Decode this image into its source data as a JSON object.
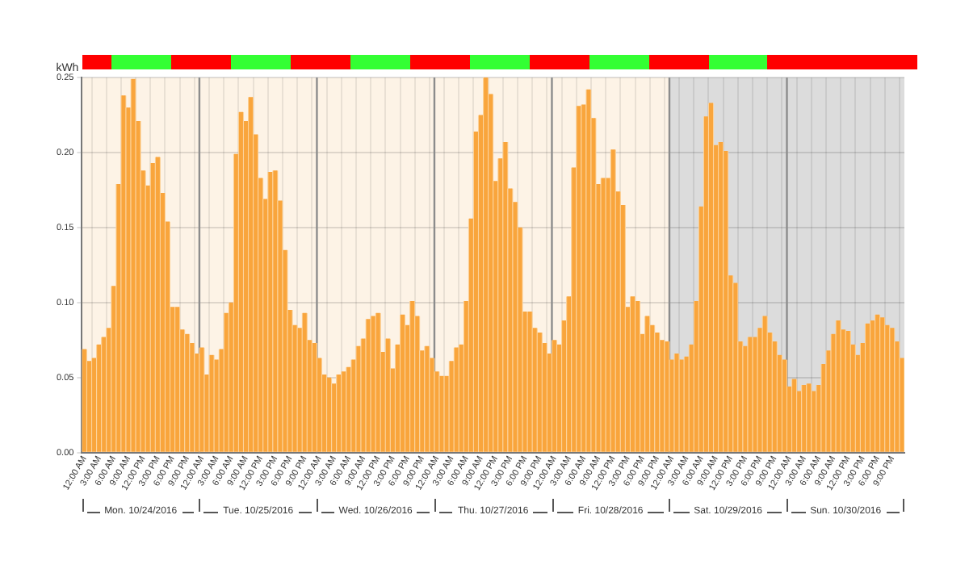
{
  "chart_data": {
    "type": "bar",
    "ylabel": "kWh",
    "x": [
      "2016-10-24T00:00",
      "2016-10-24T01:00",
      "2016-10-24T02:00",
      "2016-10-24T03:00",
      "2016-10-24T04:00",
      "2016-10-24T05:00",
      "2016-10-24T06:00",
      "2016-10-24T07:00",
      "2016-10-24T08:00",
      "2016-10-24T09:00",
      "2016-10-24T10:00",
      "2016-10-24T11:00",
      "2016-10-24T12:00",
      "2016-10-24T13:00",
      "2016-10-24T14:00",
      "2016-10-24T15:00",
      "2016-10-24T16:00",
      "2016-10-24T17:00",
      "2016-10-24T18:00",
      "2016-10-24T19:00",
      "2016-10-24T20:00",
      "2016-10-24T21:00",
      "2016-10-24T22:00",
      "2016-10-24T23:00",
      "2016-10-25T00:00",
      "2016-10-25T01:00",
      "2016-10-25T02:00",
      "2016-10-25T03:00",
      "2016-10-25T04:00",
      "2016-10-25T05:00",
      "2016-10-25T06:00",
      "2016-10-25T07:00",
      "2016-10-25T08:00",
      "2016-10-25T09:00",
      "2016-10-25T10:00",
      "2016-10-25T11:00",
      "2016-10-25T12:00",
      "2016-10-25T13:00",
      "2016-10-25T14:00",
      "2016-10-25T15:00",
      "2016-10-25T16:00",
      "2016-10-25T17:00",
      "2016-10-25T18:00",
      "2016-10-25T19:00",
      "2016-10-25T20:00",
      "2016-10-25T21:00",
      "2016-10-25T22:00",
      "2016-10-25T23:00",
      "2016-10-26T00:00",
      "2016-10-26T01:00",
      "2016-10-26T02:00",
      "2016-10-26T03:00",
      "2016-10-26T04:00",
      "2016-10-26T05:00",
      "2016-10-26T06:00",
      "2016-10-26T07:00",
      "2016-10-26T08:00",
      "2016-10-26T09:00",
      "2016-10-26T10:00",
      "2016-10-26T11:00",
      "2016-10-26T12:00",
      "2016-10-26T13:00",
      "2016-10-26T14:00",
      "2016-10-26T15:00",
      "2016-10-26T16:00",
      "2016-10-26T17:00",
      "2016-10-26T18:00",
      "2016-10-26T19:00",
      "2016-10-26T20:00",
      "2016-10-26T21:00",
      "2016-10-26T22:00",
      "2016-10-26T23:00",
      "2016-10-27T00:00",
      "2016-10-27T01:00",
      "2016-10-27T02:00",
      "2016-10-27T03:00",
      "2016-10-27T04:00",
      "2016-10-27T05:00",
      "2016-10-27T06:00",
      "2016-10-27T07:00",
      "2016-10-27T08:00",
      "2016-10-27T09:00",
      "2016-10-27T10:00",
      "2016-10-27T11:00",
      "2016-10-27T12:00",
      "2016-10-27T13:00",
      "2016-10-27T14:00",
      "2016-10-27T15:00",
      "2016-10-27T16:00",
      "2016-10-27T17:00",
      "2016-10-27T18:00",
      "2016-10-27T19:00",
      "2016-10-27T20:00",
      "2016-10-27T21:00",
      "2016-10-27T22:00",
      "2016-10-27T23:00",
      "2016-10-28T00:00",
      "2016-10-28T01:00",
      "2016-10-28T02:00",
      "2016-10-28T03:00",
      "2016-10-28T04:00",
      "2016-10-28T05:00",
      "2016-10-28T06:00",
      "2016-10-28T07:00",
      "2016-10-28T08:00",
      "2016-10-28T09:00",
      "2016-10-28T10:00",
      "2016-10-28T11:00",
      "2016-10-28T12:00",
      "2016-10-28T13:00",
      "2016-10-28T14:00",
      "2016-10-28T15:00",
      "2016-10-28T16:00",
      "2016-10-28T17:00",
      "2016-10-28T18:00",
      "2016-10-28T19:00",
      "2016-10-28T20:00",
      "2016-10-28T21:00",
      "2016-10-28T22:00",
      "2016-10-28T23:00",
      "2016-10-29T00:00",
      "2016-10-29T01:00",
      "2016-10-29T02:00",
      "2016-10-29T03:00",
      "2016-10-29T04:00",
      "2016-10-29T05:00",
      "2016-10-29T06:00",
      "2016-10-29T07:00",
      "2016-10-29T08:00",
      "2016-10-29T09:00",
      "2016-10-29T10:00",
      "2016-10-29T11:00",
      "2016-10-29T12:00",
      "2016-10-29T13:00",
      "2016-10-29T14:00",
      "2016-10-29T15:00",
      "2016-10-29T16:00",
      "2016-10-29T17:00",
      "2016-10-29T18:00",
      "2016-10-29T19:00",
      "2016-10-29T20:00",
      "2016-10-29T21:00",
      "2016-10-29T22:00",
      "2016-10-29T23:00",
      "2016-10-30T00:00",
      "2016-10-30T01:00",
      "2016-10-30T02:00",
      "2016-10-30T03:00",
      "2016-10-30T04:00",
      "2016-10-30T05:00",
      "2016-10-30T06:00",
      "2016-10-30T07:00",
      "2016-10-30T08:00",
      "2016-10-30T09:00",
      "2016-10-30T10:00",
      "2016-10-30T11:00",
      "2016-10-30T12:00",
      "2016-10-30T13:00",
      "2016-10-30T14:00",
      "2016-10-30T15:00",
      "2016-10-30T16:00",
      "2016-10-30T17:00",
      "2016-10-30T18:00",
      "2016-10-30T19:00",
      "2016-10-30T20:00",
      "2016-10-30T21:00",
      "2016-10-30T22:00",
      "2016-10-30T23:00"
    ],
    "values": [
      0.069,
      0.061,
      0.063,
      0.072,
      0.077,
      0.083,
      0.111,
      0.179,
      0.238,
      0.23,
      0.249,
      0.221,
      0.188,
      0.178,
      0.193,
      0.197,
      0.173,
      0.154,
      0.097,
      0.097,
      0.082,
      0.079,
      0.073,
      0.066,
      0.07,
      0.052,
      0.065,
      0.062,
      0.069,
      0.093,
      0.1,
      0.199,
      0.227,
      0.221,
      0.237,
      0.212,
      0.183,
      0.169,
      0.187,
      0.188,
      0.168,
      0.135,
      0.095,
      0.085,
      0.083,
      0.093,
      0.075,
      0.073,
      0.063,
      0.052,
      0.05,
      0.046,
      0.052,
      0.054,
      0.057,
      0.062,
      0.071,
      0.076,
      0.089,
      0.091,
      0.093,
      0.067,
      0.076,
      0.056,
      0.072,
      0.092,
      0.085,
      0.101,
      0.091,
      0.068,
      0.071,
      0.063,
      0.054,
      0.051,
      0.051,
      0.061,
      0.07,
      0.072,
      0.101,
      0.156,
      0.214,
      0.225,
      0.25,
      0.239,
      0.181,
      0.196,
      0.207,
      0.176,
      0.167,
      0.15,
      0.094,
      0.094,
      0.083,
      0.08,
      0.073,
      0.066,
      0.075,
      0.072,
      0.088,
      0.104,
      0.19,
      0.231,
      0.232,
      0.242,
      0.223,
      0.179,
      0.183,
      0.183,
      0.202,
      0.174,
      0.165,
      0.097,
      0.104,
      0.101,
      0.079,
      0.091,
      0.085,
      0.08,
      0.075,
      0.074,
      0.062,
      0.066,
      0.062,
      0.064,
      0.072,
      0.101,
      0.164,
      0.224,
      0.233,
      0.205,
      0.207,
      0.201,
      0.118,
      0.113,
      0.074,
      0.071,
      0.077,
      0.077,
      0.083,
      0.091,
      0.08,
      0.074,
      0.065,
      0.062,
      0.044,
      0.049,
      0.041,
      0.045,
      0.046,
      0.041,
      0.045,
      0.059,
      0.068,
      0.079,
      0.088,
      0.082,
      0.081,
      0.072,
      0.065,
      0.073,
      0.086,
      0.088,
      0.092,
      0.09,
      0.085,
      0.083,
      0.074,
      0.063
    ],
    "color": "#f9a53c",
    "xlim": [
      "2016-10-23T23:30",
      "2016-10-30T23:30"
    ],
    "xticks": [
      {
        "value": "2016-10-24T00:00",
        "label": "12:00 AM"
      },
      {
        "value": "2016-10-24T03:00",
        "label": "3:00 AM"
      },
      {
        "value": "2016-10-24T06:00",
        "label": "6:00 AM"
      },
      {
        "value": "2016-10-24T09:00",
        "label": "9:00 AM"
      },
      {
        "value": "2016-10-24T12:00",
        "label": "12:00 PM"
      },
      {
        "value": "2016-10-24T15:00",
        "label": "3:00 PM"
      },
      {
        "value": "2016-10-24T18:00",
        "label": "6:00 PM"
      },
      {
        "value": "2016-10-24T21:00",
        "label": "9:00 PM"
      },
      {
        "value": "2016-10-25T00:00",
        "label": "12:00 AM"
      },
      {
        "value": "2016-10-25T03:00",
        "label": "3:00 AM"
      },
      {
        "value": "2016-10-25T06:00",
        "label": "6:00 AM"
      },
      {
        "value": "2016-10-25T09:00",
        "label": "9:00 AM"
      },
      {
        "value": "2016-10-25T12:00",
        "label": "12:00 PM"
      },
      {
        "value": "2016-10-25T15:00",
        "label": "3:00 PM"
      },
      {
        "value": "2016-10-25T18:00",
        "label": "6:00 PM"
      },
      {
        "value": "2016-10-25T21:00",
        "label": "9:00 PM"
      },
      {
        "value": "2016-10-26T00:00",
        "label": "12:00 AM"
      },
      {
        "value": "2016-10-26T03:00",
        "label": "3:00 AM"
      },
      {
        "value": "2016-10-26T06:00",
        "label": "6:00 AM"
      },
      {
        "value": "2016-10-26T09:00",
        "label": "9:00 AM"
      },
      {
        "value": "2016-10-26T12:00",
        "label": "12:00 PM"
      },
      {
        "value": "2016-10-26T15:00",
        "label": "3:00 PM"
      },
      {
        "value": "2016-10-26T18:00",
        "label": "6:00 PM"
      },
      {
        "value": "2016-10-26T21:00",
        "label": "9:00 PM"
      },
      {
        "value": "2016-10-27T00:00",
        "label": "12:00 AM"
      },
      {
        "value": "2016-10-27T03:00",
        "label": "3:00 AM"
      },
      {
        "value": "2016-10-27T06:00",
        "label": "6:00 AM"
      },
      {
        "value": "2016-10-27T09:00",
        "label": "9:00 AM"
      },
      {
        "value": "2016-10-27T12:00",
        "label": "12:00 PM"
      },
      {
        "value": "2016-10-27T15:00",
        "label": "3:00 PM"
      },
      {
        "value": "2016-10-27T18:00",
        "label": "6:00 PM"
      },
      {
        "value": "2016-10-27T21:00",
        "label": "9:00 PM"
      },
      {
        "value": "2016-10-28T00:00",
        "label": "12:00 AM"
      },
      {
        "value": "2016-10-28T03:00",
        "label": "3:00 AM"
      },
      {
        "value": "2016-10-28T06:00",
        "label": "6:00 AM"
      },
      {
        "value": "2016-10-28T09:00",
        "label": "9:00 AM"
      },
      {
        "value": "2016-10-28T12:00",
        "label": "12:00 PM"
      },
      {
        "value": "2016-10-28T15:00",
        "label": "3:00 PM"
      },
      {
        "value": "2016-10-28T18:00",
        "label": "6:00 PM"
      },
      {
        "value": "2016-10-28T21:00",
        "label": "9:00 PM"
      },
      {
        "value": "2016-10-29T00:00",
        "label": "12:00 AM"
      },
      {
        "value": "2016-10-29T03:00",
        "label": "3:00 AM"
      },
      {
        "value": "2016-10-29T06:00",
        "label": "6:00 AM"
      },
      {
        "value": "2016-10-29T09:00",
        "label": "9:00 AM"
      },
      {
        "value": "2016-10-29T12:00",
        "label": "12:00 PM"
      },
      {
        "value": "2016-10-29T15:00",
        "label": "3:00 PM"
      },
      {
        "value": "2016-10-29T18:00",
        "label": "6:00 PM"
      },
      {
        "value": "2016-10-29T21:00",
        "label": "9:00 PM"
      },
      {
        "value": "2016-10-30T00:00",
        "label": "12:00 AM"
      },
      {
        "value": "2016-10-30T03:00",
        "label": "3:00 AM"
      },
      {
        "value": "2016-10-30T06:00",
        "label": "6:00 AM"
      },
      {
        "value": "2016-10-30T09:00",
        "label": "9:00 AM"
      },
      {
        "value": "2016-10-30T12:00",
        "label": "12:00 PM"
      },
      {
        "value": "2016-10-30T15:00",
        "label": "3:00 PM"
      },
      {
        "value": "2016-10-30T18:00",
        "label": "6:00 PM"
      },
      {
        "value": "2016-10-30T21:00",
        "label": "9:00 PM"
      }
    ],
    "ylim": [
      0,
      0.25
    ],
    "yticks": [
      {
        "value": 0,
        "label": "0.00"
      },
      {
        "value": 0.05,
        "label": "0.05"
      },
      {
        "value": 0.1,
        "label": "0.10"
      },
      {
        "value": 0.15,
        "label": "0.15"
      },
      {
        "value": 0.2,
        "label": "0.20"
      },
      {
        "value": 0.25,
        "label": "0.25"
      }
    ],
    "grid": true,
    "ref_lines": [
      {
        "axis": "x",
        "value": "2016-10-24T23:30",
        "color": "#8c8c8c"
      },
      {
        "axis": "x",
        "value": "2016-10-25T23:30",
        "color": "#8c8c8c"
      },
      {
        "axis": "x",
        "value": "2016-10-26T23:30",
        "color": "#8c8c8c"
      },
      {
        "axis": "x",
        "value": "2016-10-27T23:30",
        "color": "#8c8c8c"
      },
      {
        "axis": "x",
        "value": "2016-10-28T23:30",
        "color": "#8c8c8c"
      },
      {
        "axis": "x",
        "value": "2016-10-29T23:30",
        "color": "#8c8c8c"
      }
    ],
    "bands": [
      {
        "axis": "x",
        "from": "2016-10-28T23:30",
        "to": "2016-10-30T23:30",
        "color": "#dcdcdc"
      }
    ],
    "annotations": [
      "Mon. 10/24/2016",
      "Tue. 10/25/2016",
      "Wed. 10/26/2016",
      "Thu. 10/27/2016",
      "Fri. 10/28/2016",
      "Sat. 10/29/2016",
      "Sun. 10/30/2016"
    ]
  }
}
